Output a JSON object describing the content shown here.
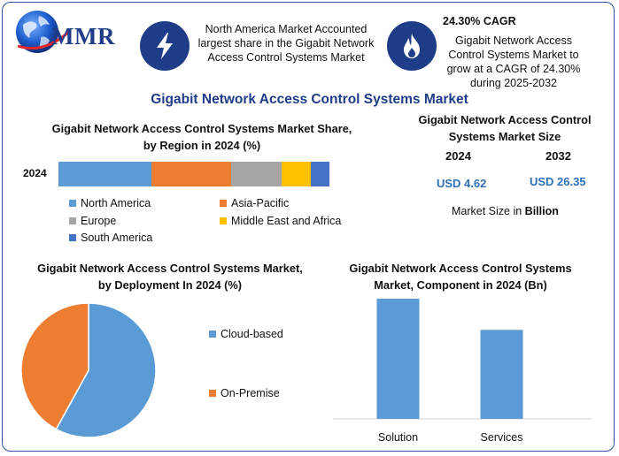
{
  "brand": {
    "name": "MMR"
  },
  "header": {
    "info_text": "North America Market Accounted largest share in the Gigabit Network Access Control Systems Market",
    "cagr_title": "24.30% CAGR",
    "cagr_text": "Gigabit Network Access Control Systems Market to grow at a CAGR of 24.30% during 2025-2032",
    "icons": [
      "lightning-bolt-icon",
      "flame-icon"
    ]
  },
  "main_title": "Gigabit Network Access Control Systems Market",
  "market_size": {
    "title": "Gigabit Network Access Control Systems Market Size",
    "year1": "2024",
    "year2": "2032",
    "value1": "USD 4.62",
    "value2": "USD 26.35",
    "note_prefix": "Market Size in ",
    "note_bold": "Billion"
  },
  "chart_data": [
    {
      "type": "bar",
      "orientation": "horizontal-stacked",
      "title": "Gigabit Network Access Control Systems Market Share, by Region in 2024 (%)",
      "categories": [
        "2024"
      ],
      "series": [
        {
          "name": "North America",
          "values": [
            35
          ],
          "color": "#5b9bd5"
        },
        {
          "name": "Asia-Pacific",
          "values": [
            30
          ],
          "color": "#ed7d31"
        },
        {
          "name": "Europe",
          "values": [
            19
          ],
          "color": "#a5a5a5"
        },
        {
          "name": "Middle East and Africa",
          "values": [
            11
          ],
          "color": "#ffc000"
        },
        {
          "name": "South America",
          "values": [
            7
          ],
          "color": "#4472c4"
        }
      ],
      "legend": "bottom"
    },
    {
      "type": "pie",
      "title": "Gigabit Network Access Control Systems Market, by Deployment In 2024 (%)",
      "slices": [
        {
          "name": "Cloud-based",
          "value": 58,
          "color": "#5b9bd5"
        },
        {
          "name": "On-Premise",
          "value": 42,
          "color": "#ed7d31"
        }
      ],
      "legend": "right"
    },
    {
      "type": "bar",
      "title": "Gigabit Network Access Control Systems Market, Component in 2024 (Bn)",
      "categories": [
        "Solution",
        "Services"
      ],
      "values": [
        2.7,
        2.0
      ],
      "ylim": [
        0,
        2.7
      ],
      "color": "#5b9bd5",
      "grid": false
    }
  ]
}
